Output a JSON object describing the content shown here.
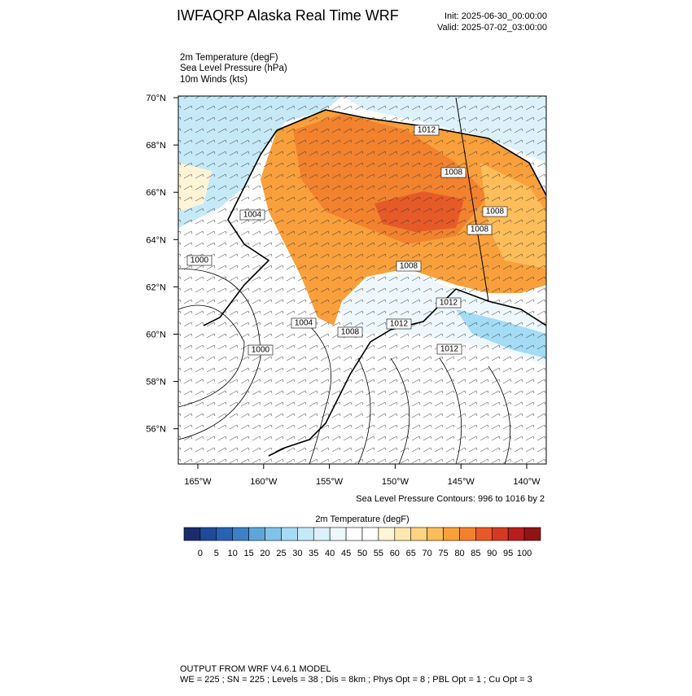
{
  "header": {
    "title": "IWFAQRP Alaska Real Time WRF",
    "init": "Init: 2025-06-30_00:00:00",
    "valid": "Valid: 2025-07-02_03:00:00"
  },
  "fields": [
    "2m Temperature   (degF)",
    "Sea Level Pressure   (hPa)",
    "10m Winds   (kts)"
  ],
  "map": {
    "lat_labels": [
      "70°N",
      "68°N",
      "66°N",
      "64°N",
      "62°N",
      "60°N",
      "58°N",
      "56°N"
    ],
    "lon_labels": [
      "165°W",
      "160°W",
      "155°W",
      "150°W",
      "145°W",
      "140°W"
    ],
    "contour_labels": [
      "1012",
      "1008",
      "1008",
      "1008",
      "1004",
      "1000",
      "1008",
      "1012",
      "1004",
      "1008",
      "1012",
      "1000",
      "1012"
    ]
  },
  "contour_note": "Sea Level Pressure Contours: 996 to 1016 by 2",
  "colorbar": {
    "title": "2m Temperature  (degF)",
    "ticks": [
      0,
      5,
      10,
      15,
      20,
      25,
      30,
      35,
      40,
      45,
      50,
      55,
      60,
      65,
      70,
      75,
      80,
      85,
      90,
      95,
      100
    ],
    "colors": [
      "#1b2c6b",
      "#1f4a9a",
      "#2a62b3",
      "#3d80c6",
      "#5ea6d9",
      "#7fc3ea",
      "#a4dbf5",
      "#c6e9f8",
      "#ddf1fa",
      "#eef8fc",
      "#ffffff",
      "#ffffff",
      "#fff5d6",
      "#fde9b0",
      "#fdd47f",
      "#fcbd5a",
      "#f9a03c",
      "#f2822e",
      "#e65a28",
      "#d43a23",
      "#b71e1e",
      "#8f1515"
    ]
  },
  "footer": {
    "line1": "OUTPUT FROM WRF V4.6.1 MODEL",
    "line2": "WE = 225 ; SN = 225 ; Levels = 38 ; Dis = 8km ; Phys Opt = 8 ; PBL Opt = 1 ; Cu Opt = 3"
  }
}
